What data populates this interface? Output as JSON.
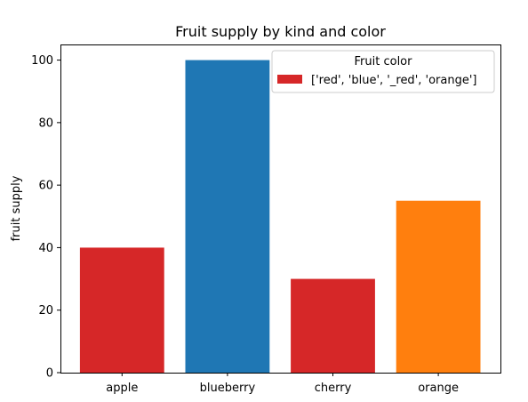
{
  "chart_data": {
    "type": "bar",
    "title": "Fruit supply by kind and color",
    "xlabel": "",
    "ylabel": "fruit supply",
    "categories": [
      "apple",
      "blueberry",
      "cherry",
      "orange"
    ],
    "values": [
      40,
      100,
      30,
      55
    ],
    "bar_colors": [
      "#d62728",
      "#1f77b4",
      "#d62728",
      "#ff7f0e"
    ],
    "ylim": [
      0,
      105
    ],
    "yticks": [
      0,
      20,
      40,
      60,
      80,
      100
    ],
    "grid": false,
    "legend": {
      "title": "Fruit color",
      "placement": "top-right",
      "entries": [
        {
          "label": "['red', 'blue', '_red', 'orange']",
          "color": "#d62728"
        }
      ]
    }
  }
}
